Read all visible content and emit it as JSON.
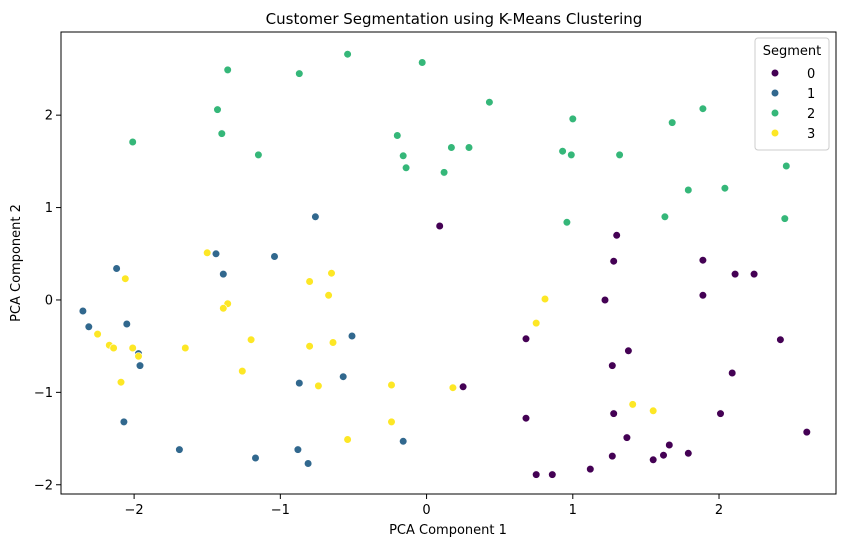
{
  "chart_data": {
    "type": "scatter",
    "title": "Customer Segmentation using K-Means Clustering",
    "xlabel": "PCA Component 1",
    "ylabel": "PCA Component 2",
    "xlim": [
      -2.5,
      2.8
    ],
    "ylim": [
      -2.1,
      2.9
    ],
    "xticks": [
      -2,
      -1,
      0,
      1,
      2
    ],
    "xtick_labels": [
      "−2",
      "−1",
      "0",
      "1",
      "2"
    ],
    "yticks": [
      -2,
      -1,
      0,
      1,
      2
    ],
    "ytick_labels": [
      "−2",
      "−1",
      "0",
      "1",
      "2"
    ],
    "grid": false,
    "legend": {
      "title": "Segment",
      "placement": "top-right"
    },
    "series": [
      {
        "name": "0",
        "color": "#440154",
        "points": [
          [
            0.09,
            0.8
          ],
          [
            1.3,
            0.7
          ],
          [
            1.28,
            0.42
          ],
          [
            1.89,
            0.43
          ],
          [
            2.11,
            0.28
          ],
          [
            2.24,
            0.28
          ],
          [
            1.89,
            0.05
          ],
          [
            1.22,
            0.0
          ],
          [
            0.68,
            -0.42
          ],
          [
            1.38,
            -0.55
          ],
          [
            2.42,
            -0.43
          ],
          [
            1.27,
            -0.71
          ],
          [
            2.09,
            -0.79
          ],
          [
            0.25,
            -0.94
          ],
          [
            0.68,
            -1.28
          ],
          [
            1.28,
            -1.23
          ],
          [
            2.01,
            -1.23
          ],
          [
            1.37,
            -1.49
          ],
          [
            1.66,
            -1.57
          ],
          [
            1.27,
            -1.69
          ],
          [
            1.62,
            -1.68
          ],
          [
            1.79,
            -1.66
          ],
          [
            1.55,
            -1.73
          ],
          [
            2.6,
            -1.43
          ],
          [
            1.12,
            -1.83
          ],
          [
            0.75,
            -1.89
          ],
          [
            0.86,
            -1.89
          ]
        ]
      },
      {
        "name": "1",
        "color": "#31688e",
        "points": [
          [
            -0.76,
            0.9
          ],
          [
            -1.44,
            0.5
          ],
          [
            -1.04,
            0.47
          ],
          [
            -2.12,
            0.34
          ],
          [
            -1.39,
            0.28
          ],
          [
            -2.35,
            -0.12
          ],
          [
            -2.31,
            -0.29
          ],
          [
            -2.05,
            -0.26
          ],
          [
            -0.51,
            -0.39
          ],
          [
            -1.97,
            -0.58
          ],
          [
            -1.96,
            -0.71
          ],
          [
            -0.57,
            -0.83
          ],
          [
            -0.87,
            -0.9
          ],
          [
            -2.07,
            -1.32
          ],
          [
            -0.16,
            -1.53
          ],
          [
            -1.69,
            -1.62
          ],
          [
            -0.88,
            -1.62
          ],
          [
            -1.17,
            -1.71
          ],
          [
            -0.81,
            -1.77
          ]
        ]
      },
      {
        "name": "2",
        "color": "#35b779",
        "points": [
          [
            -0.54,
            2.66
          ],
          [
            -0.03,
            2.57
          ],
          [
            -1.36,
            2.49
          ],
          [
            -0.87,
            2.45
          ],
          [
            0.43,
            2.14
          ],
          [
            -1.43,
            2.06
          ],
          [
            1.89,
            2.07
          ],
          [
            1.0,
            1.96
          ],
          [
            1.68,
            1.92
          ],
          [
            -1.4,
            1.8
          ],
          [
            -0.2,
            1.78
          ],
          [
            -2.01,
            1.71
          ],
          [
            0.17,
            1.65
          ],
          [
            0.29,
            1.65
          ],
          [
            0.93,
            1.61
          ],
          [
            -1.15,
            1.57
          ],
          [
            -0.16,
            1.56
          ],
          [
            0.99,
            1.57
          ],
          [
            1.32,
            1.57
          ],
          [
            -0.14,
            1.43
          ],
          [
            0.12,
            1.38
          ],
          [
            2.46,
            1.45
          ],
          [
            2.04,
            1.21
          ],
          [
            1.79,
            1.19
          ],
          [
            1.63,
            0.9
          ],
          [
            2.45,
            0.88
          ],
          [
            0.96,
            0.84
          ]
        ]
      },
      {
        "name": "3",
        "color": "#fde725",
        "points": [
          [
            -1.5,
            0.51
          ],
          [
            -0.65,
            0.29
          ],
          [
            -2.06,
            0.23
          ],
          [
            -0.8,
            0.2
          ],
          [
            -0.67,
            0.05
          ],
          [
            0.81,
            0.01
          ],
          [
            -1.36,
            -0.04
          ],
          [
            -1.39,
            -0.09
          ],
          [
            0.75,
            -0.25
          ],
          [
            -2.25,
            -0.37
          ],
          [
            -1.2,
            -0.43
          ],
          [
            -0.64,
            -0.46
          ],
          [
            -2.17,
            -0.49
          ],
          [
            -2.14,
            -0.52
          ],
          [
            -2.01,
            -0.52
          ],
          [
            -1.65,
            -0.52
          ],
          [
            -0.8,
            -0.5
          ],
          [
            -1.97,
            -0.61
          ],
          [
            -1.26,
            -0.77
          ],
          [
            -2.09,
            -0.89
          ],
          [
            -0.24,
            -0.92
          ],
          [
            -0.74,
            -0.93
          ],
          [
            0.18,
            -0.95
          ],
          [
            1.41,
            -1.13
          ],
          [
            1.55,
            -1.2
          ],
          [
            -0.24,
            -1.32
          ],
          [
            -0.54,
            -1.51
          ]
        ]
      }
    ]
  }
}
